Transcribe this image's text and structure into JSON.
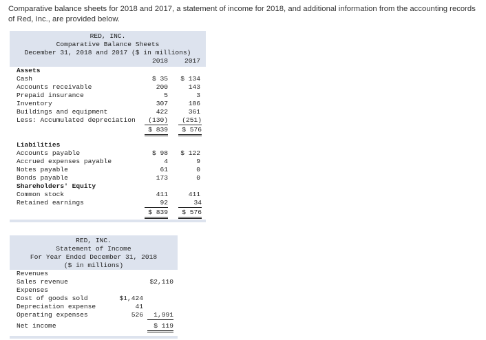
{
  "intro": "Comparative balance sheets for 2018 and 2017, a statement of income for 2018, and additional information from the accounting records of Red, Inc., are provided below.",
  "balance": {
    "company": "RED, INC.",
    "title": "Comparative Balance Sheets",
    "period": "December 31, 2018 and 2017 ($ in millions)",
    "col1": "2018",
    "col2": "2017",
    "assets_heading": "Assets",
    "assets": [
      {
        "label": "Cash",
        "v1": "$  35",
        "v2": "$ 134"
      },
      {
        "label": "Accounts receivable",
        "v1": "200",
        "v2": "143"
      },
      {
        "label": "Prepaid insurance",
        "v1": "5",
        "v2": "3"
      },
      {
        "label": "Inventory",
        "v1": "307",
        "v2": "186"
      },
      {
        "label": "Buildings and equipment",
        "v1": "422",
        "v2": "361"
      },
      {
        "label": "Less: Accumulated depreciation",
        "v1": "(130)",
        "v2": "(251)"
      }
    ],
    "assets_total": {
      "v1": "$ 839",
      "v2": "$ 576"
    },
    "liab_heading": "Liabilities",
    "liabilities": [
      {
        "label": "Accounts payable",
        "v1": "$  98",
        "v2": "$ 122"
      },
      {
        "label": "Accrued expenses payable",
        "v1": "4",
        "v2": "9"
      },
      {
        "label": "Notes payable",
        "v1": "61",
        "v2": "0"
      },
      {
        "label": "Bonds payable",
        "v1": "173",
        "v2": "0"
      }
    ],
    "equity_heading": "Shareholders' Equity",
    "equity": [
      {
        "label": "Common stock",
        "v1": "411",
        "v2": "411"
      },
      {
        "label": "Retained earnings",
        "v1": "92",
        "v2": "34"
      }
    ],
    "liab_total": {
      "v1": "$ 839",
      "v2": "$ 576"
    }
  },
  "income": {
    "company": "RED, INC.",
    "title": "Statement of Income",
    "period": "For Year Ended December 31, 2018",
    "units": "($ in millions)",
    "revenues_heading": "Revenues",
    "sales_label": "Sales revenue",
    "sales_value": "$2,110",
    "expenses_heading": "Expenses",
    "cogs_label": "Cost of goods sold",
    "cogs_value": "$1,424",
    "dep_label": "Depreciation expense",
    "dep_value": "41",
    "opex_label": "Operating expenses",
    "opex_value": "526",
    "total_exp": "1,991",
    "net_label": "Net income",
    "net_value": "$  119"
  }
}
